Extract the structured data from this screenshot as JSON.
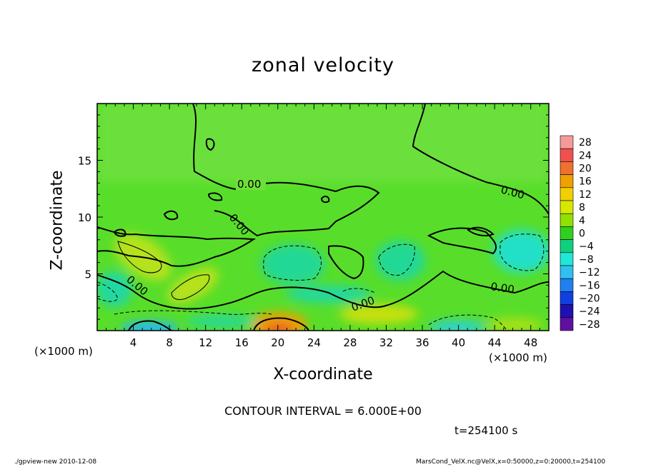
{
  "chart_data": {
    "type": "heatmap",
    "title": "zonal velocity",
    "xlabel": "X-coordinate",
    "ylabel": "Z-coordinate",
    "x_unit_label": "(×1000 m)",
    "y_unit_label": "(×1000 m)",
    "x_ticks": [
      4,
      8,
      12,
      16,
      20,
      24,
      28,
      32,
      36,
      40,
      44,
      48
    ],
    "y_ticks": [
      5,
      10,
      15
    ],
    "xlim": [
      0,
      50
    ],
    "ylim": [
      0,
      20
    ],
    "colorbar": {
      "levels": [
        28,
        24,
        20,
        16,
        12,
        8,
        4,
        0,
        -4,
        -8,
        -12,
        -16,
        -20,
        -24,
        -28
      ],
      "colors": [
        "#f49a9a",
        "#f05050",
        "#f07030",
        "#f0a000",
        "#f0d000",
        "#d8e800",
        "#90e000",
        "#30d020",
        "#10d080",
        "#20e8d8",
        "#30c0f0",
        "#2080f0",
        "#1040e0",
        "#2010b0",
        "#6010a0"
      ]
    },
    "contour_labels": [
      "0.00",
      "0.00",
      "0.00",
      "0.00",
      "0.00",
      "0.00"
    ],
    "contour_interval_text": "CONTOUR INTERVAL = 6.000E+00",
    "time_text": "t=254100 s"
  },
  "footer": {
    "left": "./gpview-new  2010-12-08",
    "right": "MarsCond_VelX.nc@VelX,x=0:50000,z=0:20000,t=254100"
  }
}
